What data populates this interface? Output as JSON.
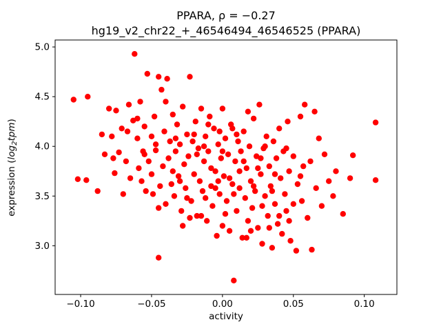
{
  "chart_data": {
    "type": "scatter",
    "title": "PPARA, ρ = −0.27",
    "subtitle": "hg19_v2_chr22_+_46546494_46546525 (PPARA)",
    "xlabel": "activity",
    "ylabel": "expression (log2tpm)",
    "ylabel_parts": {
      "prefix": "expression (",
      "math1": "log",
      "sub": "2",
      "math2": "tpm",
      "suffix": ")"
    },
    "marker_color": "#ff0000",
    "marker_radius": 4.2,
    "legend": "none",
    "grid": false,
    "xlim": [
      -0.118,
      0.123
    ],
    "ylim": [
      2.51,
      5.07
    ],
    "xticks": {
      "values": [
        -0.1,
        -0.05,
        0.0,
        0.05,
        0.1
      ],
      "labels": [
        "−0.10",
        "−0.05",
        "0.00",
        "0.05",
        "0.10"
      ]
    },
    "yticks": {
      "values": [
        3.0,
        3.5,
        4.0,
        4.5,
        5.0
      ],
      "labels": [
        "3.0",
        "3.5",
        "4.0",
        "4.5",
        "5.0"
      ]
    },
    "points": [
      [
        -0.105,
        4.47
      ],
      [
        -0.095,
        4.5
      ],
      [
        -0.102,
        3.67
      ],
      [
        -0.096,
        3.66
      ],
      [
        -0.088,
        3.55
      ],
      [
        -0.085,
        4.12
      ],
      [
        -0.083,
        3.92
      ],
      [
        -0.08,
        4.38
      ],
      [
        -0.078,
        4.1
      ],
      [
        -0.076,
        3.73
      ],
      [
        -0.075,
        4.36
      ],
      [
        -0.073,
        3.94
      ],
      [
        -0.071,
        4.18
      ],
      [
        -0.07,
        3.52
      ],
      [
        -0.068,
        3.85
      ],
      [
        -0.066,
        4.42
      ],
      [
        -0.065,
        3.68
      ],
      [
        -0.063,
        4.26
      ],
      [
        -0.062,
        4.93
      ],
      [
        -0.06,
        4.08
      ],
      [
        -0.059,
        3.78
      ],
      [
        -0.058,
        4.45
      ],
      [
        -0.056,
        3.95
      ],
      [
        -0.055,
        4.2
      ],
      [
        -0.054,
        3.55
      ],
      [
        -0.053,
        4.73
      ],
      [
        -0.052,
        3.85
      ],
      [
        -0.05,
        4.1
      ],
      [
        -0.049,
        3.52
      ],
      [
        -0.048,
        4.3
      ],
      [
        -0.047,
        3.96
      ],
      [
        -0.045,
        4.7
      ],
      [
        -0.045,
        2.88
      ],
      [
        -0.044,
        3.6
      ],
      [
        -0.043,
        4.57
      ],
      [
        -0.042,
        3.8
      ],
      [
        -0.041,
        4.15
      ],
      [
        -0.04,
        3.42
      ],
      [
        -0.039,
        4.68
      ],
      [
        -0.038,
        3.88
      ],
      [
        -0.037,
        4.05
      ],
      [
        -0.036,
        3.62
      ],
      [
        -0.035,
        4.32
      ],
      [
        -0.034,
        3.5
      ],
      [
        -0.033,
        3.95
      ],
      [
        -0.032,
        4.22
      ],
      [
        -0.031,
        3.7
      ],
      [
        -0.03,
        4.02
      ],
      [
        -0.029,
        3.35
      ],
      [
        -0.028,
        4.4
      ],
      [
        -0.027,
        3.82
      ],
      [
        -0.026,
        3.58
      ],
      [
        -0.025,
        4.12
      ],
      [
        -0.024,
        3.9
      ],
      [
        -0.023,
        4.7
      ],
      [
        -0.022,
        3.45
      ],
      [
        -0.021,
        4.05
      ],
      [
        -0.02,
        3.72
      ],
      [
        -0.019,
        4.25
      ],
      [
        -0.018,
        3.3
      ],
      [
        -0.017,
        3.98
      ],
      [
        -0.016,
        3.65
      ],
      [
        -0.015,
        4.38
      ],
      [
        -0.014,
        3.55
      ],
      [
        -0.013,
        3.85
      ],
      [
        -0.012,
        4.1
      ],
      [
        -0.011,
        3.25
      ],
      [
        -0.01,
        3.95
      ],
      [
        -0.009,
        4.3
      ],
      [
        -0.008,
        3.6
      ],
      [
        -0.007,
        3.4
      ],
      [
        -0.006,
        4.18
      ],
      [
        -0.005,
        3.75
      ],
      [
        -0.004,
        3.1
      ],
      [
        -0.003,
        4.02
      ],
      [
        -0.002,
        3.52
      ],
      [
        -0.001,
        3.88
      ],
      [
        0.0,
        4.38
      ],
      [
        0.0,
        3.2
      ],
      [
        0.001,
        3.7
      ],
      [
        0.002,
        4.08
      ],
      [
        0.003,
        3.45
      ],
      [
        0.004,
        3.92
      ],
      [
        0.005,
        3.15
      ],
      [
        0.006,
        4.22
      ],
      [
        0.007,
        3.62
      ],
      [
        0.008,
        2.65
      ],
      [
        0.009,
        3.85
      ],
      [
        0.01,
        3.35
      ],
      [
        0.011,
        4.05
      ],
      [
        0.012,
        3.58
      ],
      [
        0.013,
        3.95
      ],
      [
        0.014,
        3.08
      ],
      [
        0.015,
        4.15
      ],
      [
        0.016,
        3.48
      ],
      [
        0.017,
        3.78
      ],
      [
        0.018,
        3.25
      ],
      [
        0.019,
        4.0
      ],
      [
        0.02,
        3.65
      ],
      [
        0.021,
        3.38
      ],
      [
        0.022,
        4.28
      ],
      [
        0.023,
        3.55
      ],
      [
        0.024,
        3.9
      ],
      [
        0.025,
        3.18
      ],
      [
        0.026,
        4.42
      ],
      [
        0.027,
        3.72
      ],
      [
        0.028,
        3.02
      ],
      [
        0.029,
        3.98
      ],
      [
        0.03,
        3.5
      ],
      [
        0.031,
        4.1
      ],
      [
        0.032,
        3.3
      ],
      [
        0.033,
        3.8
      ],
      [
        0.034,
        3.6
      ],
      [
        0.035,
        2.98
      ],
      [
        0.036,
        4.05
      ],
      [
        0.037,
        3.42
      ],
      [
        0.038,
        3.88
      ],
      [
        0.039,
        3.22
      ],
      [
        0.04,
        4.18
      ],
      [
        0.041,
        3.68
      ],
      [
        0.042,
        3.12
      ],
      [
        0.043,
        3.95
      ],
      [
        0.044,
        3.52
      ],
      [
        0.045,
        3.35
      ],
      [
        0.046,
        4.25
      ],
      [
        0.047,
        3.75
      ],
      [
        0.048,
        3.05
      ],
      [
        0.05,
        3.9
      ],
      [
        0.052,
        2.95
      ],
      [
        0.053,
        3.62
      ],
      [
        0.055,
        4.3
      ],
      [
        0.056,
        3.45
      ],
      [
        0.058,
        4.42
      ],
      [
        0.06,
        3.28
      ],
      [
        0.062,
        3.85
      ],
      [
        0.063,
        2.96
      ],
      [
        0.065,
        4.35
      ],
      [
        0.066,
        3.58
      ],
      [
        0.068,
        4.08
      ],
      [
        0.07,
        3.4
      ],
      [
        0.072,
        3.92
      ],
      [
        0.075,
        3.65
      ],
      [
        0.078,
        3.5
      ],
      [
        0.08,
        3.75
      ],
      [
        0.085,
        3.32
      ],
      [
        0.09,
        3.68
      ],
      [
        0.092,
        3.91
      ],
      [
        0.108,
        4.24
      ],
      [
        0.108,
        3.66
      ],
      [
        -0.03,
        3.65
      ],
      [
        -0.025,
        3.48
      ],
      [
        -0.02,
        4.12
      ],
      [
        -0.015,
        3.3
      ],
      [
        -0.01,
        4.22
      ],
      [
        -0.005,
        3.58
      ],
      [
        0.0,
        3.95
      ],
      [
        0.005,
        3.68
      ],
      [
        0.01,
        4.12
      ],
      [
        0.015,
        3.85
      ],
      [
        0.02,
        3.15
      ],
      [
        0.025,
        3.78
      ],
      [
        0.03,
        4.0
      ],
      [
        -0.035,
        3.75
      ],
      [
        -0.04,
        4.45
      ],
      [
        -0.045,
        3.38
      ],
      [
        -0.05,
        3.72
      ],
      [
        -0.055,
        3.92
      ],
      [
        -0.06,
        4.28
      ],
      [
        0.035,
        3.55
      ],
      [
        0.04,
        3.3
      ],
      [
        0.045,
        3.98
      ],
      [
        0.05,
        3.42
      ],
      [
        0.055,
        3.7
      ],
      [
        -0.028,
        3.2
      ],
      [
        -0.018,
        3.92
      ],
      [
        -0.008,
        3.78
      ],
      [
        0.002,
        3.32
      ],
      [
        0.012,
        3.75
      ],
      [
        0.022,
        3.6
      ],
      [
        -0.012,
        3.48
      ],
      [
        -0.002,
        4.15
      ],
      [
        0.008,
        3.52
      ],
      [
        0.018,
        4.35
      ],
      [
        0.028,
        3.4
      ],
      [
        -0.033,
        4.08
      ],
      [
        -0.023,
        3.28
      ],
      [
        -0.013,
        4.0
      ],
      [
        -0.003,
        3.65
      ],
      [
        0.007,
        4.18
      ],
      [
        0.017,
        3.08
      ],
      [
        0.027,
        3.88
      ],
      [
        0.037,
        3.72
      ],
      [
        0.047,
        3.25
      ],
      [
        0.057,
        3.8
      ],
      [
        -0.047,
        4.02
      ],
      [
        -0.057,
        3.65
      ],
      [
        -0.067,
        4.15
      ],
      [
        -0.077,
        3.88
      ],
      [
        0.033,
        3.18
      ]
    ]
  }
}
